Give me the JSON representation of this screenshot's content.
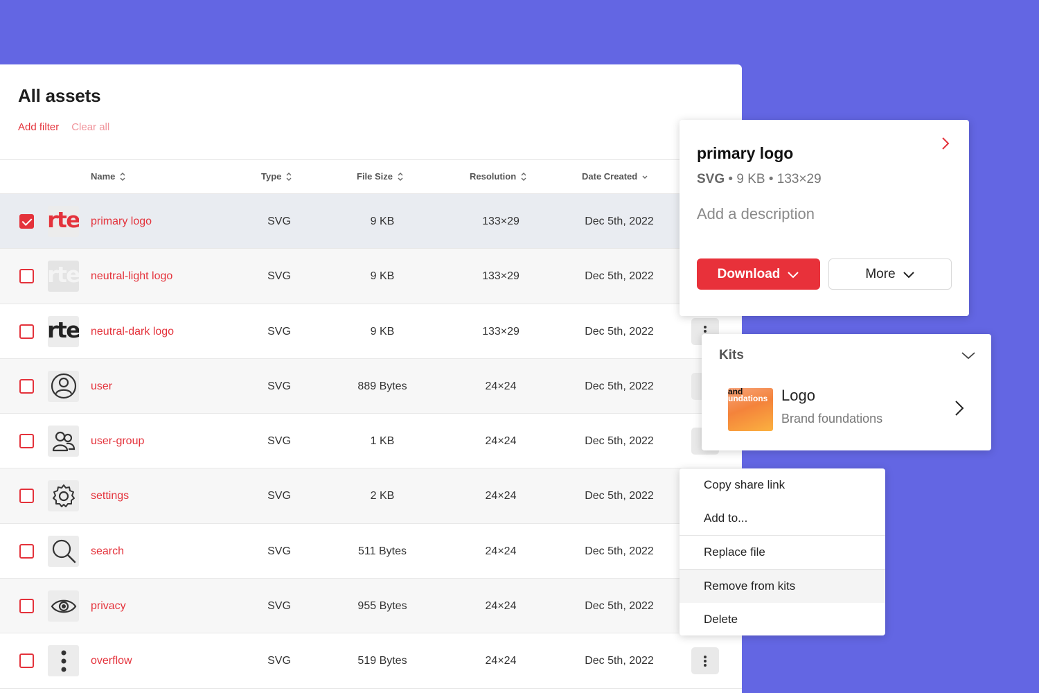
{
  "page": {
    "title": "All assets"
  },
  "filters": {
    "add_filter": "Add filter",
    "clear_all": "Clear all"
  },
  "table": {
    "columns": [
      {
        "key": "name",
        "label": "Name",
        "sort": "both"
      },
      {
        "key": "type",
        "label": "Type",
        "sort": "both"
      },
      {
        "key": "size",
        "label": "File Size",
        "sort": "both"
      },
      {
        "key": "resolution",
        "label": "Resolution",
        "sort": "both"
      },
      {
        "key": "date",
        "label": "Date Created",
        "sort": "desc"
      }
    ],
    "rows": [
      {
        "name": "primary logo",
        "type": "SVG",
        "size": "9 KB",
        "resolution": "133×29",
        "date": "Dec 5th, 2022",
        "thumb": "rte",
        "thumb_text": "rte",
        "checked": true
      },
      {
        "name": "neutral-light logo",
        "type": "SVG",
        "size": "9 KB",
        "resolution": "133×29",
        "date": "Dec 5th, 2022",
        "thumb": "rte-light",
        "thumb_text": "rte",
        "checked": false
      },
      {
        "name": "neutral-dark logo",
        "type": "SVG",
        "size": "9 KB",
        "resolution": "133×29",
        "date": "Dec 5th, 2022",
        "thumb": "rte-dark",
        "thumb_text": "rte",
        "checked": false
      },
      {
        "name": "user",
        "type": "SVG",
        "size": "889 Bytes",
        "resolution": "24×24",
        "date": "Dec 5th, 2022",
        "thumb": "user-icon",
        "checked": false
      },
      {
        "name": "user-group",
        "type": "SVG",
        "size": "1 KB",
        "resolution": "24×24",
        "date": "Dec 5th, 2022",
        "thumb": "user-group-icon",
        "checked": false
      },
      {
        "name": "settings",
        "type": "SVG",
        "size": "2 KB",
        "resolution": "24×24",
        "date": "Dec 5th, 2022",
        "thumb": "gear-icon",
        "checked": false
      },
      {
        "name": "search",
        "type": "SVG",
        "size": "511 Bytes",
        "resolution": "24×24",
        "date": "Dec 5th, 2022",
        "thumb": "search-icon",
        "checked": false
      },
      {
        "name": "privacy",
        "type": "SVG",
        "size": "955 Bytes",
        "resolution": "24×24",
        "date": "Dec 5th, 2022",
        "thumb": "eye-icon",
        "checked": false
      },
      {
        "name": "overflow",
        "type": "SVG",
        "size": "519 Bytes",
        "resolution": "24×24",
        "date": "Dec 5th, 2022",
        "thumb": "kebab-icon",
        "checked": false
      }
    ]
  },
  "detail": {
    "title": "primary logo",
    "format": "SVG",
    "size": "9 KB",
    "resolution": "133×29",
    "separator": "•",
    "description_placeholder": "Add a description",
    "download_label": "Download",
    "more_label": "More"
  },
  "kits": {
    "heading": "Kits",
    "item": {
      "name": "Logo",
      "subtitle": "Brand foundations",
      "thumb_line1": "and",
      "thumb_line2": "undations"
    }
  },
  "menu": {
    "items": [
      "Copy share link",
      "Add to...",
      "Replace file",
      "Remove from kits",
      "Delete"
    ],
    "hovered_index": 3
  },
  "colors": {
    "accent": "#e4323b",
    "background": "#6366e3",
    "panel": "#ffffff",
    "selected_row": "#e9ecf1"
  }
}
